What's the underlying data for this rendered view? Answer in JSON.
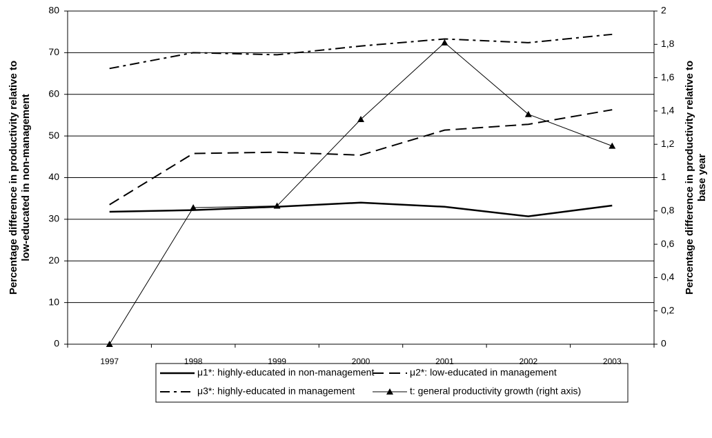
{
  "chart_data": {
    "type": "line",
    "ylabel": [
      "Percentage difference in productivity relative to",
      "low-educated in non-management"
    ],
    "y2label": [
      "Percentage difference in productivity relative to",
      "base year"
    ],
    "categories": [
      "1997",
      "1998",
      "1999",
      "2000",
      "2001",
      "2002",
      "2003"
    ],
    "ylim": [
      0,
      80
    ],
    "yticks": [
      0,
      10,
      20,
      30,
      40,
      50,
      60,
      70,
      80
    ],
    "y2lim": [
      0,
      2
    ],
    "y2ticks": [
      0,
      {
        "value": 0.2,
        "label": "0,2"
      },
      {
        "value": 0.4,
        "label": "0,4"
      },
      {
        "value": 0.6,
        "label": "0,6"
      },
      {
        "value": 0.8,
        "label": "0,8"
      },
      1,
      {
        "value": 1.2,
        "label": "1,2"
      },
      {
        "value": 1.4,
        "label": "1,4"
      },
      {
        "value": 1.6,
        "label": "1,6"
      },
      {
        "value": 1.8,
        "label": "1,8"
      },
      2
    ],
    "grid": true,
    "legend": "bottom",
    "series": [
      {
        "name": "μ1*: highly-educated in non-management",
        "color": "#000000",
        "dash": "solid",
        "width": 2.5,
        "values": [
          31.8,
          32.2,
          33.0,
          34.0,
          33.0,
          30.7,
          33.3
        ]
      },
      {
        "name": "μ2*: low-educated in management",
        "color": "#000000",
        "dash": "long",
        "width": 2,
        "values": [
          33.5,
          45.8,
          46.1,
          45.4,
          51.4,
          52.8,
          56.3
        ]
      },
      {
        "name": "μ3*: highly-educated in management",
        "color": "#000000",
        "dash": "dashdot",
        "width": 2,
        "values": [
          66.2,
          70.0,
          69.5,
          71.6,
          73.3,
          72.4,
          74.4
        ]
      },
      {
        "name": "t: general productivity growth (right axis)",
        "color": "#000000",
        "dash": "solid",
        "width": 1,
        "marker": "triangle",
        "axis": "y2",
        "values": [
          0,
          0.82,
          0.83,
          1.35,
          1.81,
          1.38,
          1.19
        ]
      }
    ]
  }
}
